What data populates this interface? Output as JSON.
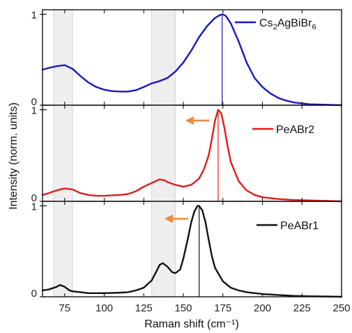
{
  "chart_data": {
    "type": "line",
    "xlabel": "Raman shift (cm⁻¹)",
    "ylabel": "Intensity (norm. units)",
    "xlim": [
      61,
      250
    ],
    "x_ticks": [
      "75",
      "100",
      "125",
      "150",
      "175",
      "200",
      "225",
      "250"
    ],
    "x_tick_values": [
      75,
      100,
      125,
      150,
      175,
      200,
      225,
      250
    ],
    "shaded_regions": [
      [
        68,
        80
      ],
      [
        130,
        145
      ]
    ],
    "panels": [
      {
        "y_ticks": [
          "0",
          "1"
        ],
        "ylim": [
          0,
          1.05
        ],
        "series": [
          {
            "name": "Cs2AgBiBr6",
            "legend_base": "Cs",
            "legend_sub1": "2",
            "legend_mid": "AgBiBr",
            "legend_sub2": "6",
            "color": "#1616c8",
            "peak_x": 174.5,
            "x": [
              61,
              65,
              70,
              75,
              80,
              85,
              90,
              95,
              100,
              105,
              110,
              115,
              120,
              125,
              130,
              135,
              140,
              145,
              150,
              155,
              160,
              165,
              170,
              173,
              175,
              177,
              180,
              185,
              190,
              195,
              200,
              205,
              210,
              215,
              220,
              225,
              230,
              240,
              250
            ],
            "y": [
              0.39,
              0.41,
              0.43,
              0.44,
              0.4,
              0.32,
              0.25,
              0.2,
              0.17,
              0.155,
              0.15,
              0.15,
              0.165,
              0.2,
              0.24,
              0.265,
              0.3,
              0.37,
              0.47,
              0.6,
              0.75,
              0.87,
              0.96,
              0.99,
              1.0,
              0.98,
              0.9,
              0.7,
              0.47,
              0.3,
              0.2,
              0.13,
              0.08,
              0.05,
              0.03,
              0.02,
              0.01,
              0.005,
              0.0
            ]
          }
        ],
        "arrow": false
      },
      {
        "y_ticks": [
          "0",
          "1"
        ],
        "ylim": [
          0,
          1.05
        ],
        "series": [
          {
            "name": "PeABr2",
            "color": "#e81818",
            "peak_x": 172,
            "x": [
              61,
              65,
              70,
              75,
              80,
              85,
              90,
              95,
              100,
              105,
              110,
              115,
              120,
              125,
              130,
              135,
              138,
              140,
              145,
              150,
              155,
              160,
              163,
              166,
              168,
              170,
              172,
              174,
              176,
              178,
              180,
              185,
              190,
              195,
              200,
              210,
              220,
              230,
              240,
              250
            ],
            "y": [
              0.07,
              0.09,
              0.12,
              0.14,
              0.13,
              0.09,
              0.07,
              0.06,
              0.06,
              0.065,
              0.07,
              0.08,
              0.11,
              0.16,
              0.2,
              0.24,
              0.23,
              0.21,
              0.18,
              0.16,
              0.18,
              0.25,
              0.35,
              0.5,
              0.68,
              0.88,
              1.0,
              0.96,
              0.8,
              0.6,
              0.43,
              0.22,
              0.12,
              0.07,
              0.045,
              0.025,
              0.015,
              0.01,
              0.005,
              0.0
            ]
          }
        ],
        "arrow": true
      },
      {
        "y_ticks": [
          "0",
          "1"
        ],
        "ylim": [
          0,
          1.05
        ],
        "series": [
          {
            "name": "PeABr1",
            "color": "#111111",
            "peak_x": 160,
            "x": [
              61,
              65,
              70,
              72,
              75,
              78,
              80,
              85,
              90,
              100,
              110,
              115,
              120,
              125,
              130,
              133,
              135,
              137,
              140,
              143,
              145,
              148,
              150,
              153,
              155,
              157,
              159,
              160,
              162,
              164,
              166,
              168,
              170,
              175,
              180,
              185,
              190,
              200,
              210,
              220,
              230,
              240,
              250
            ],
            "y": [
              0.07,
              0.08,
              0.11,
              0.13,
              0.11,
              0.07,
              0.06,
              0.05,
              0.04,
              0.04,
              0.045,
              0.05,
              0.07,
              0.1,
              0.18,
              0.28,
              0.35,
              0.37,
              0.33,
              0.27,
              0.26,
              0.3,
              0.42,
              0.65,
              0.82,
              0.94,
              1.0,
              1.0,
              0.95,
              0.82,
              0.63,
              0.45,
              0.32,
              0.17,
              0.1,
              0.07,
              0.05,
              0.03,
              0.02,
              0.01,
              0.005,
              0.003,
              0.0
            ]
          }
        ],
        "arrow": true
      }
    ],
    "arrow_color": "#f5883a"
  }
}
